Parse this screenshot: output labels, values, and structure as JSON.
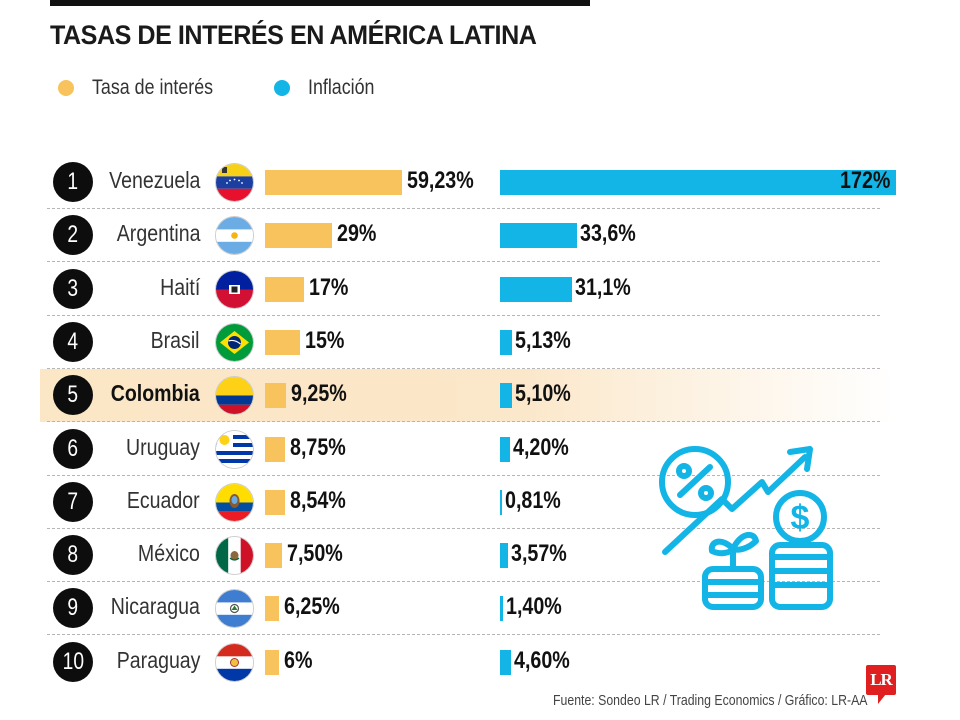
{
  "header": {
    "title": "TASAS DE INTERÉS EN AMÉRICA LATINA"
  },
  "legend": [
    {
      "label": "Tasa de interés",
      "color": "#f8c25c"
    },
    {
      "label": "Inflación",
      "color": "#13b4e6"
    }
  ],
  "colors": {
    "interest": "#f8c25c",
    "inflation": "#13b4e6",
    "highlight_row": "#fbe6c6",
    "rank_badge": "#0d0d0d"
  },
  "chart_data": {
    "type": "bar",
    "orientation": "horizontal",
    "title": "TASAS DE INTERÉS EN AMÉRICA LATINA",
    "xlabel": "",
    "ylabel": "",
    "legend_position": "top-left",
    "grid": false,
    "categories": [
      "Venezuela",
      "Argentina",
      "Haití",
      "Brasil",
      "Colombia",
      "Uruguay",
      "Ecuador",
      "México",
      "Nicaragua",
      "Paraguay"
    ],
    "ranks": [
      "1",
      "2",
      "3",
      "4",
      "5",
      "6",
      "7",
      "8",
      "9",
      "10"
    ],
    "highlighted_category": "Colombia",
    "series": [
      {
        "name": "Tasa de interés",
        "values": [
          59.23,
          29,
          17,
          15,
          9.25,
          8.75,
          8.54,
          7.5,
          6.25,
          6
        ],
        "labels": [
          "59,23%",
          "29%",
          "17%",
          "15%",
          "9,25%",
          "8,75%",
          "8,54%",
          "7,50%",
          "6,25%",
          "6%"
        ],
        "max": 59.23
      },
      {
        "name": "Inflación",
        "values": [
          172,
          33.6,
          31.1,
          5.13,
          5.1,
          4.2,
          0.81,
          3.57,
          1.4,
          4.6
        ],
        "labels": [
          "172%",
          "33,6%",
          "31,1%",
          "5,13%",
          "5,10%",
          "4,20%",
          "0,81%",
          "3,57%",
          "1,40%",
          "4,60%"
        ],
        "max": 172
      }
    ],
    "flags": [
      "venezuela-flag",
      "argentina-flag",
      "haiti-flag",
      "brazil-flag",
      "colombia-flag",
      "uruguay-flag",
      "ecuador-flag",
      "mexico-flag",
      "nicaragua-flag",
      "paraguay-flag"
    ]
  },
  "illustration": {
    "icon": "finance-growth-icon"
  },
  "footer": {
    "source": "Fuente: Sondeo LR / Trading Economics / Gráfico: LR-AA",
    "logo_text": "LR"
  }
}
